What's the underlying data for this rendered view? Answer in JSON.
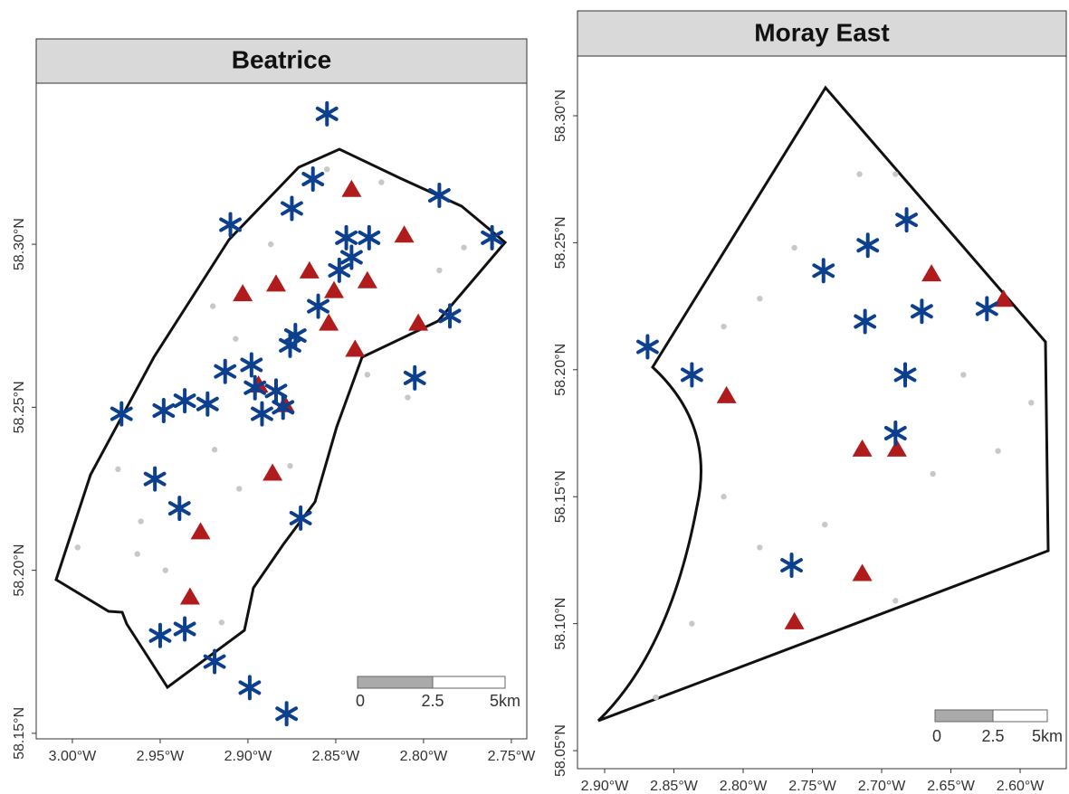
{
  "chart_data": [
    {
      "type": "scatter",
      "title": "Beatrice",
      "xlim": [
        -3.0206,
        -2.7412
      ],
      "ylim": [
        58.1483,
        58.3494
      ],
      "xticks": [
        {
          "value": -3.0,
          "label": "3.00°W"
        },
        {
          "value": -2.95,
          "label": "2.95°W"
        },
        {
          "value": -2.9,
          "label": "2.90°W"
        },
        {
          "value": -2.85,
          "label": "2.85°W"
        },
        {
          "value": -2.8,
          "label": "2.80°W"
        },
        {
          "value": -2.75,
          "label": "2.75°W"
        }
      ],
      "yticks": [
        {
          "value": 58.15,
          "label": "58.15°N"
        },
        {
          "value": 58.2,
          "label": "58.20°N"
        },
        {
          "value": 58.25,
          "label": "58.25°N"
        },
        {
          "value": 58.3,
          "label": "58.30°N"
        }
      ],
      "series": [
        {
          "marker": "dot",
          "color": "#c8c8c8",
          "x": [
            -2.855,
            -2.824,
            -2.887,
            -2.777,
            -2.92,
            -2.791,
            -2.907,
            -2.832,
            -2.809,
            -2.974,
            -2.961,
            -2.919,
            -2.905,
            -2.876,
            -2.997,
            -2.947,
            -2.963,
            -2.915
          ],
          "values": [
            58.323,
            58.319,
            58.3,
            58.299,
            58.281,
            58.292,
            58.271,
            58.26,
            58.253,
            58.231,
            58.215,
            58.237,
            58.225,
            58.232,
            58.207,
            58.2,
            58.205,
            58.184
          ]
        },
        {
          "marker": "triangle",
          "color": "#b01c1c",
          "x": [
            -2.841,
            -2.811,
            -2.865,
            -2.884,
            -2.903,
            -2.832,
            -2.851,
            -2.854,
            -2.839,
            -2.803,
            -2.894,
            -2.879,
            -2.886,
            -2.927,
            -2.933
          ],
          "values": [
            58.317,
            58.303,
            58.292,
            58.288,
            58.285,
            58.289,
            58.286,
            58.276,
            58.268,
            58.276,
            58.257,
            58.251,
            58.23,
            58.212,
            58.192
          ]
        },
        {
          "marker": "star",
          "color": "#0d3f8f",
          "x": [
            -2.855,
            -2.863,
            -2.875,
            -2.91,
            -2.791,
            -2.761,
            -2.844,
            -2.831,
            -2.841,
            -2.848,
            -2.86,
            -2.873,
            -2.876,
            -2.972,
            -2.948,
            -2.936,
            -2.923,
            -2.913,
            -2.898,
            -2.896,
            -2.884,
            -2.892,
            -2.88,
            -2.805,
            -2.785,
            -2.953,
            -2.939,
            -2.87,
            -2.95,
            -2.936,
            -2.919,
            -2.899,
            -2.878
          ],
          "values": [
            58.34,
            58.32,
            58.311,
            58.306,
            58.315,
            58.302,
            58.302,
            58.302,
            58.296,
            58.292,
            58.281,
            58.272,
            58.269,
            58.248,
            58.249,
            58.252,
            58.251,
            58.261,
            58.263,
            58.256,
            58.255,
            58.248,
            58.25,
            58.259,
            58.278,
            58.228,
            58.219,
            58.216,
            58.18,
            58.182,
            58.172,
            58.164,
            58.156
          ]
        }
      ],
      "scale_bar_labels": [
        "0",
        "2.5",
        "5km"
      ]
    },
    {
      "type": "scatter",
      "title": "Moray East",
      "xlim": [
        -2.9196,
        -2.5667
      ],
      "ylim": [
        58.0429,
        58.3235
      ],
      "xticks": [
        {
          "value": -2.9,
          "label": "2.90°W"
        },
        {
          "value": -2.85,
          "label": "2.85°W"
        },
        {
          "value": -2.8,
          "label": "2.80°W"
        },
        {
          "value": -2.75,
          "label": "2.75°W"
        },
        {
          "value": -2.7,
          "label": "2.70°W"
        },
        {
          "value": -2.65,
          "label": "2.65°W"
        },
        {
          "value": -2.6,
          "label": "2.60°W"
        }
      ],
      "yticks": [
        {
          "value": 58.05,
          "label": "58.05°N"
        },
        {
          "value": 58.1,
          "label": "58.10°N"
        },
        {
          "value": 58.15,
          "label": "58.15°N"
        },
        {
          "value": 58.2,
          "label": "58.20°N"
        },
        {
          "value": 58.25,
          "label": "58.25°N"
        },
        {
          "value": 58.3,
          "label": "58.30°N"
        }
      ],
      "series": [
        {
          "marker": "dot",
          "color": "#c8c8c8",
          "x": [
            -2.763,
            -2.716,
            -2.69,
            -2.788,
            -2.814,
            -2.641,
            -2.592,
            -2.616,
            -2.663,
            -2.814,
            -2.788,
            -2.741,
            -2.837,
            -2.863,
            -2.69
          ],
          "values": [
            58.248,
            58.277,
            58.277,
            58.228,
            58.217,
            58.198,
            58.187,
            58.168,
            58.159,
            58.15,
            58.13,
            58.139,
            58.1,
            58.071,
            58.109
          ]
        },
        {
          "marker": "triangle",
          "color": "#b01c1c",
          "x": [
            -2.664,
            -2.612,
            -2.812,
            -2.714,
            -2.689,
            -2.714,
            -2.763
          ],
          "values": [
            58.238,
            58.228,
            58.19,
            58.169,
            58.169,
            58.12,
            58.101
          ]
        },
        {
          "marker": "star",
          "color": "#0d3f8f",
          "x": [
            -2.869,
            -2.837,
            -2.71,
            -2.742,
            -2.682,
            -2.712,
            -2.671,
            -2.624,
            -2.683,
            -2.69,
            -2.765
          ],
          "values": [
            58.209,
            58.198,
            58.249,
            58.239,
            58.259,
            58.219,
            58.223,
            58.224,
            58.198,
            58.175,
            58.123
          ]
        }
      ],
      "scale_bar_labels": [
        "0",
        "2.5",
        "5km"
      ]
    }
  ]
}
